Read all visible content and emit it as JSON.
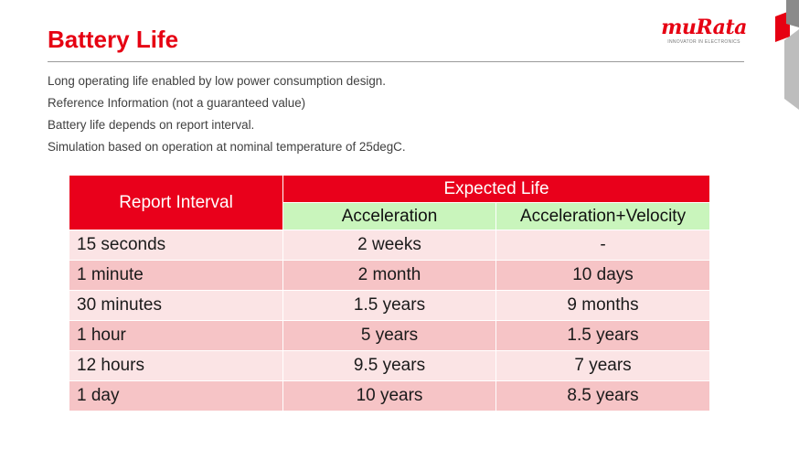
{
  "title": "Battery Life",
  "logo": {
    "word": "muRata",
    "tagline": "INNOVATOR IN ELECTRONICS"
  },
  "intro_lines": [
    "Long operating life enabled by low power consumption design.",
    "Reference Information (not a guaranteed value)",
    "Battery life depends on report interval.",
    "Simulation based on operation at nominal temperature of 25degC."
  ],
  "table": {
    "col_interval": "Report Interval",
    "col_group": "Expected Life",
    "col_acc": "Acceleration",
    "col_accvel": "Acceleration+Velocity",
    "rows": [
      {
        "interval": "15 seconds",
        "acc": "2 weeks",
        "accvel": "-"
      },
      {
        "interval": "1 minute",
        "acc": "2 month",
        "accvel": "10 days"
      },
      {
        "interval": "30 minutes",
        "acc": "1.5 years",
        "accvel": "9 months"
      },
      {
        "interval": "1 hour",
        "acc": "5 years",
        "accvel": "1.5 years"
      },
      {
        "interval": "12 hours",
        "acc": "9.5 years",
        "accvel": "7 years"
      },
      {
        "interval": "1 day",
        "acc": "10 years",
        "accvel": "8.5 years"
      }
    ]
  },
  "colors": {
    "brand_red": "#e60012",
    "header_red": "#e9001b",
    "header_green": "#c9f5bc",
    "row_light": "#fbe4e5",
    "row_dark": "#f6c4c6"
  }
}
